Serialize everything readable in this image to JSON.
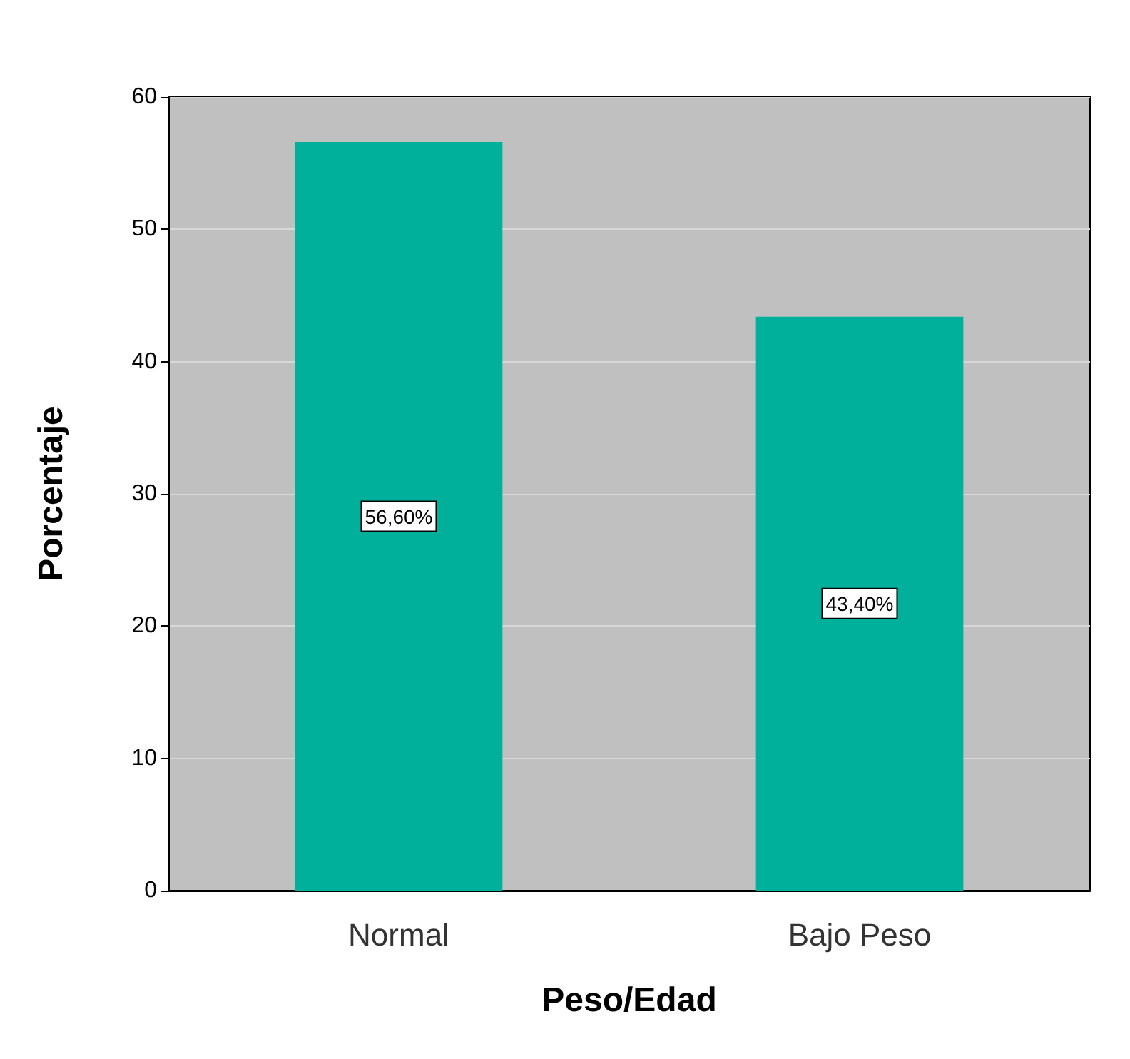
{
  "chart_data": {
    "type": "bar",
    "xlabel": "Peso/Edad",
    "ylabel": "Porcentaje",
    "categories": [
      "Normal",
      "Bajo Peso"
    ],
    "values": [
      56.6,
      43.4
    ],
    "value_labels": [
      "56,60%",
      "43,40%"
    ],
    "color": "#00b09b",
    "ylim": [
      0,
      60
    ],
    "yticks": [
      0,
      10,
      20,
      30,
      40,
      50,
      60
    ],
    "grid": true
  }
}
